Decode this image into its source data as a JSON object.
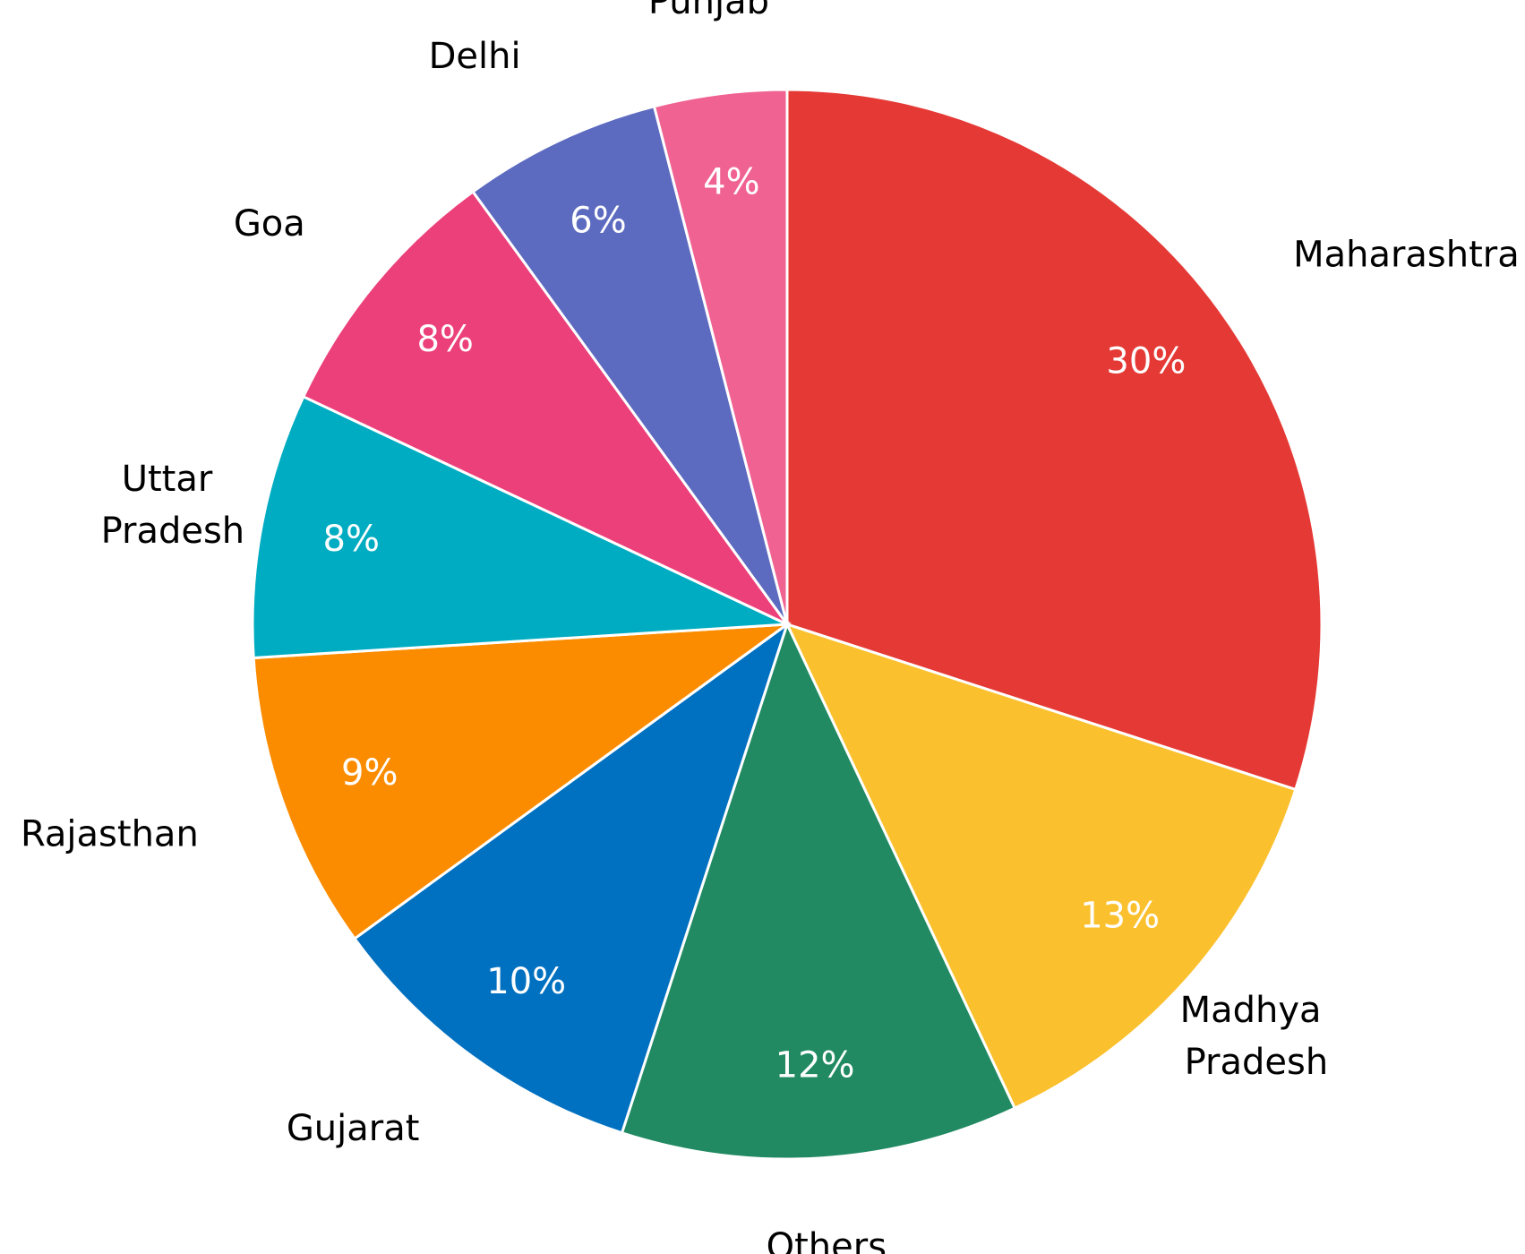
{
  "chart_data": {
    "type": "pie",
    "categories": [
      "Maharashtra",
      "Madhya Pradesh",
      "Others",
      "Gujarat",
      "Rajasthan",
      "Uttar Pradesh",
      "Goa",
      "Delhi",
      "Punjab"
    ],
    "values": [
      30,
      13,
      12,
      10,
      9,
      8,
      8,
      6,
      4
    ],
    "value_labels": [
      "30%",
      "13%",
      "12%",
      "10%",
      "9%",
      "8%",
      "8%",
      "6%",
      "4%"
    ],
    "colors": [
      "#e53935",
      "#fbc02d",
      "#218a62",
      "#0070c0",
      "#fb8c00",
      "#00acc1",
      "#ec407a",
      "#5c6bc0",
      "#f06292"
    ]
  }
}
